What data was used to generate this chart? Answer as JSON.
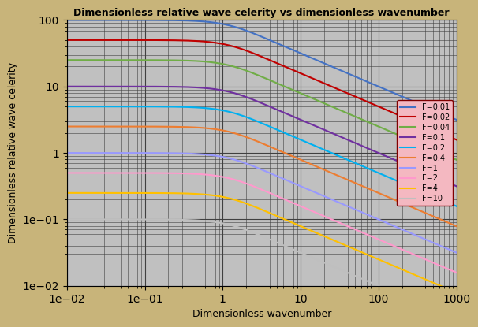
{
  "title": "Dimensionless relative wave celerity vs dimensionless wavenumber",
  "xlabel": "Dimensionless wavenumber",
  "ylabel": "Dimensionless relative wave celerity",
  "froude_numbers": [
    0.01,
    0.02,
    0.04,
    0.1,
    0.2,
    0.4,
    1,
    2,
    4,
    10
  ],
  "legend_labels": [
    "F=0.01",
    "F=0.02",
    "F=0.04",
    "F=0.1",
    "F=0.2",
    "F=0.4",
    "F=1",
    "F=2",
    "F=4",
    "F=10"
  ],
  "colors": [
    "#4472c4",
    "#c00000",
    "#70ad47",
    "#7030a0",
    "#00b0f0",
    "#ed7d31",
    "#9999ff",
    "#ff99cc",
    "#ffc000",
    "#bfbfbf"
  ],
  "background_color": "#c0c0c0",
  "outer_background": "#c8b47a",
  "legend_bg": "#f4b8c1",
  "xlim": [
    0.01,
    1000
  ],
  "ylim": [
    0.01,
    100
  ],
  "linewidth": 1.5
}
